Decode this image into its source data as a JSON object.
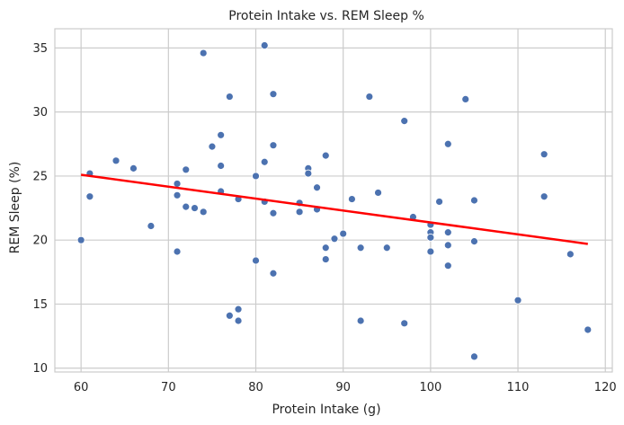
{
  "chart_data": {
    "type": "scatter",
    "title": "Protein Intake vs. REM Sleep %",
    "xlabel": "Protein Intake (g)",
    "ylabel": "REM Sleep (%)",
    "xlim": [
      57.0,
      120.8
    ],
    "ylim": [
      9.7,
      36.5
    ],
    "x_ticks": [
      60,
      70,
      80,
      90,
      100,
      110,
      120
    ],
    "y_ticks": [
      10,
      15,
      20,
      25,
      30,
      35
    ],
    "grid": true,
    "legend": "none",
    "colors": {
      "points": "#4c72b0",
      "trend": "#ff0000",
      "grid": "#cccccc",
      "background": "#ffffff"
    },
    "points": [
      {
        "x": 60,
        "y": 20.0
      },
      {
        "x": 61,
        "y": 25.2
      },
      {
        "x": 61,
        "y": 23.4
      },
      {
        "x": 64,
        "y": 26.2
      },
      {
        "x": 66,
        "y": 25.6
      },
      {
        "x": 68,
        "y": 21.1
      },
      {
        "x": 71,
        "y": 24.4
      },
      {
        "x": 71,
        "y": 23.5
      },
      {
        "x": 71,
        "y": 19.1
      },
      {
        "x": 72,
        "y": 25.5
      },
      {
        "x": 72,
        "y": 22.6
      },
      {
        "x": 73,
        "y": 22.5
      },
      {
        "x": 74,
        "y": 34.6
      },
      {
        "x": 74,
        "y": 22.2
      },
      {
        "x": 75,
        "y": 27.3
      },
      {
        "x": 76,
        "y": 28.2
      },
      {
        "x": 76,
        "y": 25.8
      },
      {
        "x": 76,
        "y": 23.8
      },
      {
        "x": 77,
        "y": 31.2
      },
      {
        "x": 77,
        "y": 14.1
      },
      {
        "x": 78,
        "y": 23.2
      },
      {
        "x": 78,
        "y": 14.6
      },
      {
        "x": 78,
        "y": 13.7
      },
      {
        "x": 80,
        "y": 25.0
      },
      {
        "x": 80,
        "y": 18.4
      },
      {
        "x": 81,
        "y": 35.2
      },
      {
        "x": 81,
        "y": 26.1
      },
      {
        "x": 81,
        "y": 23.0
      },
      {
        "x": 82,
        "y": 31.4
      },
      {
        "x": 82,
        "y": 27.4
      },
      {
        "x": 82,
        "y": 22.1
      },
      {
        "x": 82,
        "y": 17.4
      },
      {
        "x": 85,
        "y": 22.9
      },
      {
        "x": 85,
        "y": 22.2
      },
      {
        "x": 86,
        "y": 25.6
      },
      {
        "x": 86,
        "y": 25.2
      },
      {
        "x": 87,
        "y": 24.1
      },
      {
        "x": 87,
        "y": 22.4
      },
      {
        "x": 88,
        "y": 26.6
      },
      {
        "x": 88,
        "y": 19.4
      },
      {
        "x": 88,
        "y": 18.5
      },
      {
        "x": 89,
        "y": 20.1
      },
      {
        "x": 90,
        "y": 20.5
      },
      {
        "x": 91,
        "y": 23.2
      },
      {
        "x": 92,
        "y": 19.4
      },
      {
        "x": 92,
        "y": 13.7
      },
      {
        "x": 93,
        "y": 31.2
      },
      {
        "x": 94,
        "y": 23.7
      },
      {
        "x": 95,
        "y": 19.4
      },
      {
        "x": 97,
        "y": 29.3
      },
      {
        "x": 97,
        "y": 13.5
      },
      {
        "x": 98,
        "y": 21.8
      },
      {
        "x": 100,
        "y": 21.2
      },
      {
        "x": 100,
        "y": 20.6
      },
      {
        "x": 100,
        "y": 20.2
      },
      {
        "x": 100,
        "y": 19.1
      },
      {
        "x": 101,
        "y": 23.0
      },
      {
        "x": 102,
        "y": 27.5
      },
      {
        "x": 102,
        "y": 20.6
      },
      {
        "x": 102,
        "y": 19.6
      },
      {
        "x": 102,
        "y": 18.0
      },
      {
        "x": 104,
        "y": 31.0
      },
      {
        "x": 105,
        "y": 23.1
      },
      {
        "x": 105,
        "y": 19.9
      },
      {
        "x": 105,
        "y": 10.9
      },
      {
        "x": 110,
        "y": 15.3
      },
      {
        "x": 113,
        "y": 26.7
      },
      {
        "x": 113,
        "y": 23.4
      },
      {
        "x": 116,
        "y": 18.9
      },
      {
        "x": 118,
        "y": 13.0
      }
    ],
    "trend_line": {
      "x": [
        60,
        118
      ],
      "y": [
        25.1,
        19.7
      ]
    }
  }
}
